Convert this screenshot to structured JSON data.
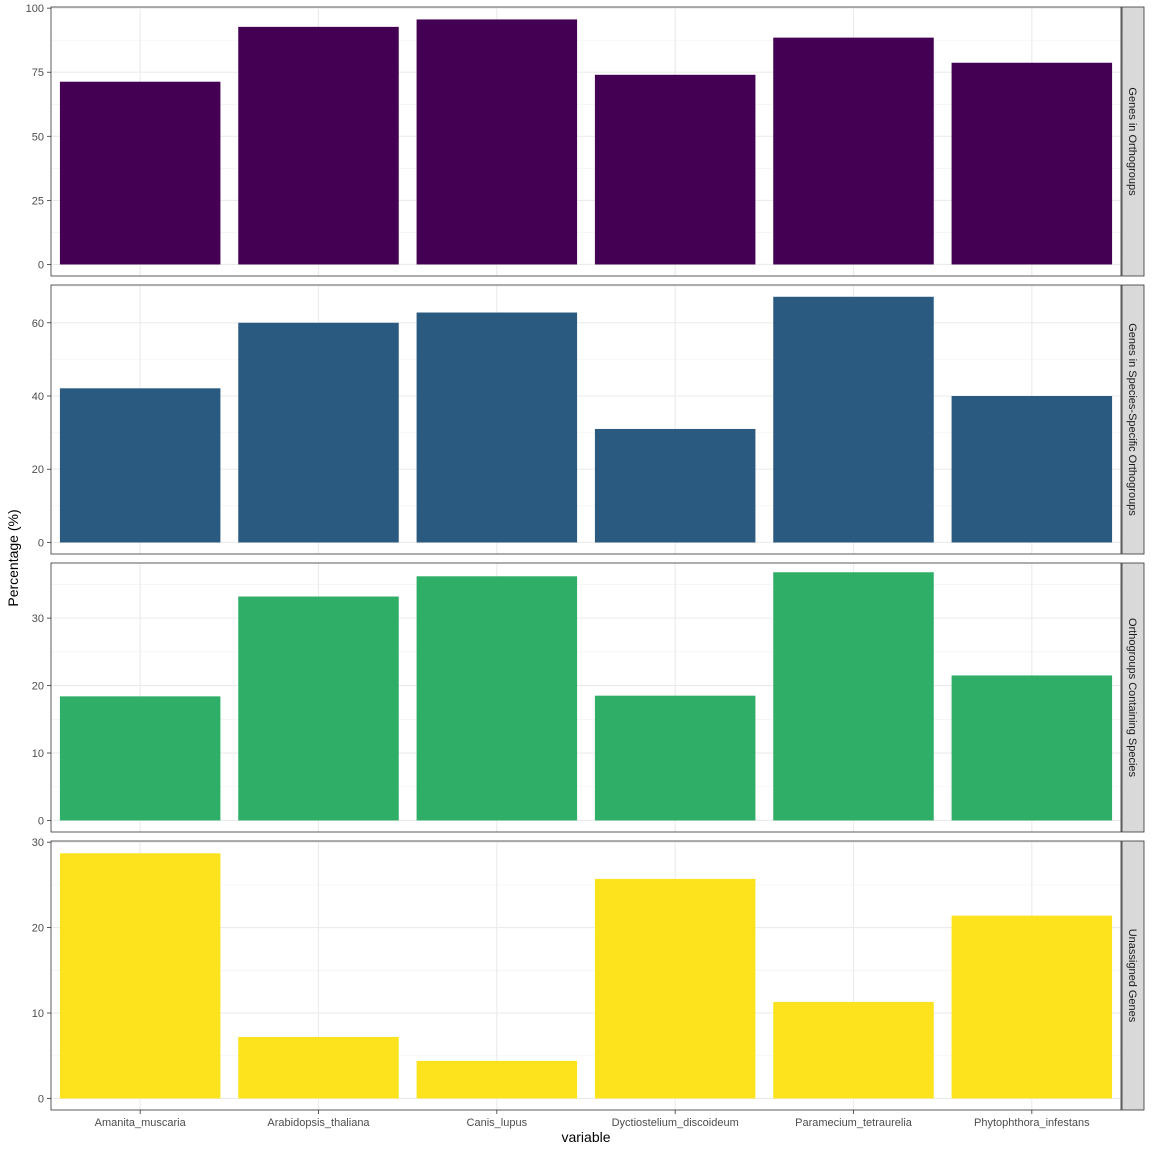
{
  "chart_data": {
    "type": "bar",
    "layout": "facet-grid-rows",
    "xlabel": "variable",
    "ylabel": "Percentage (%)",
    "categories": [
      "Amanita_muscaria",
      "Arabidopsis_thaliana",
      "Canis_lupus",
      "Dyctiostelium_discoideum",
      "Paramecium_tetraurelia",
      "Phytophthora_infestans"
    ],
    "panels": [
      {
        "name": "Genes in Orthogroups",
        "color": "#440154",
        "ylim": [
          0,
          100
        ],
        "ticks": [
          0,
          25,
          50,
          75,
          100
        ],
        "values": [
          71.3,
          92.7,
          95.6,
          74.0,
          88.5,
          78.7
        ]
      },
      {
        "name": "Genes in Species-Specific Orthogroups",
        "color": "#2a5a80",
        "ylim": [
          0,
          70
        ],
        "ticks": [
          0,
          20,
          40,
          60
        ],
        "values": [
          42.1,
          60.0,
          62.8,
          31.0,
          67.1,
          40.0
        ]
      },
      {
        "name": "Orthogroups Containing Species",
        "color": "#2fae68",
        "ylim": [
          0,
          38
        ],
        "ticks": [
          0,
          10,
          20,
          30
        ],
        "values": [
          18.4,
          33.2,
          36.2,
          18.5,
          36.8,
          21.5
        ]
      },
      {
        "name": "Unassigned Genes",
        "color": "#fce31d",
        "ylim": [
          0,
          30
        ],
        "ticks": [
          0,
          10,
          20,
          30
        ],
        "values": [
          28.7,
          7.2,
          4.4,
          25.7,
          11.3,
          21.4
        ]
      }
    ]
  }
}
